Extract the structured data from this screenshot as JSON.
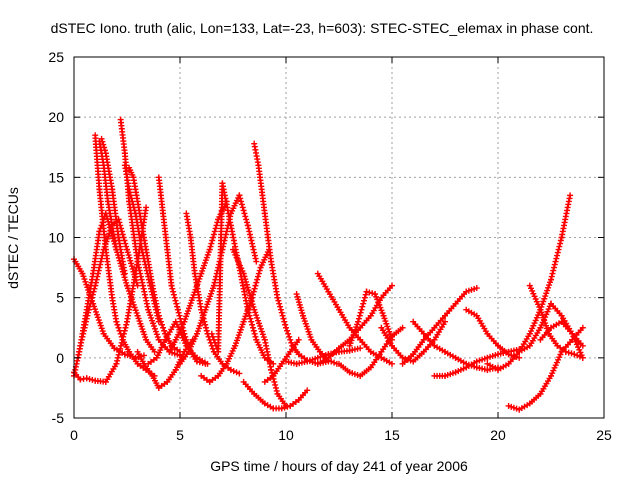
{
  "chart_data": {
    "type": "scatter",
    "title": "dSTEC Iono. truth (alic, Lon=133, Lat=-23, h=603): STEC-STEC_elemax in phase cont.",
    "xlabel": "GPS time / hours of day 241 of year 2006",
    "ylabel": "dSTEC  / TECUs",
    "xlim": [
      0,
      25
    ],
    "ylim": [
      -5,
      25
    ],
    "xticks": [
      0,
      5,
      10,
      15,
      20,
      25
    ],
    "yticks": [
      -5,
      0,
      5,
      10,
      15,
      20,
      25
    ],
    "grid": true,
    "marker": "plus",
    "color": "#ff0000",
    "series": [
      {
        "x": [
          0.0,
          0.3,
          0.6,
          1.0,
          1.5,
          2.0,
          2.5,
          3.0,
          3.4
        ],
        "y": [
          -1.2,
          -1.8,
          -1.7,
          -1.9,
          -2.0,
          -0.5,
          3.0,
          8.0,
          12.5
        ]
      },
      {
        "x": [
          0.0,
          0.4,
          0.9,
          1.4,
          1.9,
          2.4,
          2.9,
          3.3
        ],
        "y": [
          8.2,
          7.0,
          4.5,
          2.0,
          0.8,
          0.3,
          0.0,
          0.2
        ]
      },
      {
        "x": [
          0.0,
          0.3,
          0.7,
          1.0,
          1.4,
          1.8,
          2.1,
          2.5,
          3.0
        ],
        "y": [
          -1.5,
          1.0,
          4.0,
          6.0,
          9.0,
          11.0,
          11.5,
          9.0,
          6.0
        ]
      },
      {
        "x": [
          0.2,
          0.5,
          0.9,
          1.2,
          1.5,
          2.0,
          2.5,
          3.0,
          3.4,
          3.8
        ],
        "y": [
          0.0,
          3.0,
          7.0,
          10.5,
          12.0,
          9.0,
          6.0,
          3.5,
          1.5,
          0.5
        ]
      },
      {
        "x": [
          1.0,
          1.2,
          1.5,
          1.8,
          2.0,
          2.3,
          2.6,
          3.0,
          3.4,
          3.8
        ],
        "y": [
          18.5,
          14.0,
          9.0,
          5.0,
          3.0,
          1.5,
          0.5,
          -0.5,
          -1.0,
          -1.5
        ]
      },
      {
        "x": [
          1.2,
          1.4,
          1.6,
          1.8,
          2.0
        ],
        "y": [
          18.0,
          16.0,
          13.0,
          11.0,
          9.0
        ]
      },
      {
        "x": [
          1.3,
          1.5,
          1.8,
          2.1,
          2.4
        ],
        "y": [
          18.2,
          17.0,
          14.0,
          10.0,
          7.0
        ]
      },
      {
        "x": [
          2.2,
          2.4,
          2.6,
          3.0,
          3.5,
          4.0,
          4.5,
          5.0
        ],
        "y": [
          19.8,
          17.0,
          13.0,
          8.0,
          4.0,
          1.5,
          0.5,
          0.2
        ]
      },
      {
        "x": [
          2.4,
          2.6,
          2.9,
          3.2,
          3.6,
          4.0
        ],
        "y": [
          16.0,
          14.0,
          12.0,
          9.0,
          6.0,
          3.0
        ]
      },
      {
        "x": [
          2.6,
          2.8,
          3.1,
          3.4,
          3.7,
          4.0,
          4.3,
          4.6,
          5.0
        ],
        "y": [
          15.8,
          15.0,
          12.0,
          9.0,
          6.0,
          3.5,
          2.0,
          1.0,
          0.5
        ]
      },
      {
        "x": [
          3.0,
          3.3,
          3.7,
          4.0,
          4.4,
          4.8,
          5.2,
          5.6
        ],
        "y": [
          0.5,
          -0.5,
          -1.5,
          -2.5,
          -2.0,
          -1.0,
          0.5,
          1.5
        ]
      },
      {
        "x": [
          4.0,
          4.2,
          4.4,
          4.6,
          4.9,
          5.2,
          5.5,
          5.8,
          6.2
        ],
        "y": [
          15.0,
          12.0,
          9.0,
          6.0,
          4.0,
          2.0,
          0.5,
          -0.3,
          -0.5
        ]
      },
      {
        "x": [
          3.5,
          3.9,
          4.3,
          4.8,
          5.3,
          5.8,
          6.3
        ],
        "y": [
          -0.5,
          0.0,
          1.5,
          3.0,
          1.0,
          0.0,
          -0.5
        ]
      },
      {
        "x": [
          5.3,
          5.5,
          5.7,
          6.0,
          6.3,
          6.6,
          7.0,
          7.4,
          7.8
        ],
        "y": [
          12.0,
          10.0,
          7.0,
          4.0,
          2.0,
          0.5,
          -0.5,
          -1.0,
          -1.3
        ]
      },
      {
        "x": [
          4.5,
          4.8,
          5.2,
          5.6,
          6.0,
          6.4,
          6.8,
          7.2
        ],
        "y": [
          0.5,
          1.5,
          3.0,
          5.0,
          7.0,
          9.0,
          11.5,
          13.0
        ]
      },
      {
        "x": [
          5.0,
          5.4,
          5.8,
          6.2,
          6.6,
          7.0,
          7.4,
          7.8,
          8.2,
          8.6
        ],
        "y": [
          -0.5,
          0.5,
          2.0,
          4.0,
          6.0,
          9.0,
          12.0,
          13.5,
          11.0,
          8.0
        ]
      },
      {
        "x": [
          6.5,
          6.8,
          7.0,
          7.4,
          7.8,
          8.2,
          8.6,
          9.0,
          9.4
        ],
        "y": [
          2.0,
          0.5,
          14.5,
          11.0,
          7.5,
          4.0,
          1.5,
          0.0,
          -0.5
        ]
      },
      {
        "x": [
          6.0,
          6.4,
          6.8,
          7.2,
          7.6,
          8.0,
          8.4,
          8.8,
          9.2
        ],
        "y": [
          -1.5,
          -2.0,
          -1.5,
          -0.5,
          1.0,
          3.0,
          5.0,
          7.5,
          9.0
        ]
      },
      {
        "x": [
          7.5,
          8.0,
          8.5,
          9.0,
          9.3,
          9.6,
          10.0
        ],
        "y": [
          9.0,
          7.0,
          4.0,
          1.5,
          -1.0,
          -3.0,
          -4.0
        ]
      },
      {
        "x": [
          8.5,
          8.7,
          9.0,
          9.3,
          9.6,
          10.0,
          10.3,
          10.6,
          11.0,
          11.5,
          12.0
        ],
        "y": [
          17.8,
          16.0,
          12.0,
          8.0,
          5.0,
          2.5,
          1.0,
          0.3,
          -0.2,
          -0.5,
          -0.3
        ]
      },
      {
        "x": [
          8.0,
          8.5,
          9.0,
          9.4,
          9.8,
          10.2,
          10.6,
          11.0
        ],
        "y": [
          -2.0,
          -3.0,
          -3.8,
          -4.2,
          -4.2,
          -4.0,
          -3.5,
          -2.7
        ]
      },
      {
        "x": [
          9.0,
          9.4,
          9.8,
          10.2,
          10.6
        ],
        "y": [
          -2.0,
          -1.5,
          -0.5,
          0.5,
          1.5
        ]
      },
      {
        "x": [
          10.5,
          10.8,
          11.2,
          11.6,
          12.0,
          12.4
        ],
        "y": [
          5.3,
          3.5,
          1.5,
          0.5,
          -0.2,
          -0.5
        ]
      },
      {
        "x": [
          10.0,
          10.5,
          11.0,
          11.5,
          12.0,
          12.5,
          13.0,
          13.5
        ],
        "y": [
          -0.3,
          -0.5,
          -0.3,
          0.0,
          0.3,
          0.5,
          0.6,
          0.8
        ]
      },
      {
        "x": [
          11.5,
          12.0,
          12.5,
          13.0,
          13.5,
          14.0,
          14.5,
          15.0
        ],
        "y": [
          7.0,
          5.5,
          4.0,
          2.5,
          1.5,
          0.5,
          0.0,
          -0.5
        ]
      },
      {
        "x": [
          11.5,
          12.0,
          12.5,
          13.0,
          13.5,
          14.0,
          14.5,
          15.0
        ],
        "y": [
          -0.5,
          0.0,
          0.8,
          1.5,
          2.5,
          3.5,
          5.0,
          6.0
        ]
      },
      {
        "x": [
          12.5,
          13.0,
          13.5,
          14.0,
          14.5,
          15.0,
          15.5
        ],
        "y": [
          -0.5,
          -1.2,
          -1.5,
          -0.8,
          0.5,
          1.8,
          2.5
        ]
      },
      {
        "x": [
          13.0,
          13.4,
          13.8,
          14.2,
          14.6,
          15.0
        ],
        "y": [
          1.0,
          3.0,
          5.5,
          5.3,
          3.5,
          1.5
        ]
      },
      {
        "x": [
          14.5,
          15.0,
          15.5,
          16.0,
          16.5,
          17.0,
          17.5
        ],
        "y": [
          2.5,
          1.0,
          0.0,
          -0.3,
          0.5,
          1.5,
          3.0
        ]
      },
      {
        "x": [
          15.5,
          16.0,
          16.5,
          17.0,
          17.5,
          18.0,
          18.5,
          19.0
        ],
        "y": [
          -0.5,
          0.3,
          1.5,
          2.5,
          3.5,
          4.5,
          5.5,
          5.8
        ]
      },
      {
        "x": [
          16.0,
          16.5,
          17.0,
          17.5,
          18.0,
          18.5,
          19.0,
          19.5,
          20.0
        ],
        "y": [
          3.0,
          2.0,
          1.0,
          0.5,
          0.0,
          -0.5,
          -0.8,
          -1.0,
          -0.8
        ]
      },
      {
        "x": [
          17.0,
          17.5,
          18.0,
          18.5,
          19.0,
          19.5,
          20.0,
          20.5,
          21.0
        ],
        "y": [
          -1.5,
          -1.5,
          -1.2,
          -0.8,
          -0.3,
          0.0,
          0.3,
          0.5,
          0.7
        ]
      },
      {
        "x": [
          18.5,
          19.0,
          19.5,
          20.0,
          20.5,
          21.0
        ],
        "y": [
          4.0,
          3.5,
          2.0,
          1.0,
          0.3,
          0.0
        ]
      },
      {
        "x": [
          19.5,
          20.0,
          20.5,
          21.0,
          21.5,
          22.0,
          22.5,
          23.0,
          23.4
        ],
        "y": [
          -0.5,
          -1.0,
          -0.5,
          0.5,
          2.0,
          4.0,
          6.5,
          10.0,
          13.5
        ]
      },
      {
        "x": [
          20.5,
          21.0,
          21.5,
          22.0,
          22.5,
          23.0,
          23.5,
          24.0
        ],
        "y": [
          -4.0,
          -4.3,
          -3.8,
          -3.0,
          -1.5,
          0.5,
          1.5,
          2.5
        ]
      },
      {
        "x": [
          21.5,
          22.0,
          22.4,
          22.8,
          23.2,
          23.6,
          24.0
        ],
        "y": [
          6.0,
          4.0,
          2.0,
          1.0,
          0.5,
          0.3,
          0.0
        ]
      },
      {
        "x": [
          21.0,
          21.5,
          22.0,
          22.5,
          23.0,
          23.5,
          24.0
        ],
        "y": [
          0.5,
          1.0,
          2.5,
          4.5,
          3.5,
          2.0,
          1.0
        ]
      },
      {
        "x": [
          22.0,
          22.5,
          23.0,
          23.5,
          24.0
        ],
        "y": [
          1.5,
          2.5,
          3.0,
          2.0,
          0.0
        ]
      }
    ]
  }
}
